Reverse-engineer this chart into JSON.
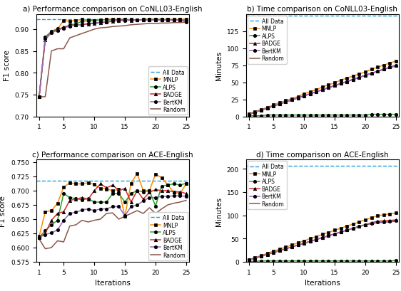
{
  "iterations": [
    1,
    2,
    3,
    4,
    5,
    6,
    7,
    8,
    9,
    10,
    11,
    12,
    13,
    14,
    15,
    16,
    17,
    18,
    19,
    20,
    21,
    22,
    23,
    24,
    25
  ],
  "conll_perf": {
    "all_data": 0.922,
    "MNLP": [
      0.745,
      0.88,
      0.893,
      0.9,
      0.92,
      0.918,
      0.92,
      0.922,
      0.921,
      0.92,
      0.921,
      0.922,
      0.923,
      0.923,
      0.922,
      0.922,
      0.921,
      0.922,
      0.923,
      0.923,
      0.922,
      0.923,
      0.922,
      0.923,
      0.923
    ],
    "ALPS": [
      0.745,
      0.882,
      0.895,
      0.901,
      0.902,
      0.91,
      0.912,
      0.918,
      0.919,
      0.92,
      0.921,
      0.922,
      0.921,
      0.922,
      0.922,
      0.921,
      0.921,
      0.922,
      0.922,
      0.923,
      0.922,
      0.922,
      0.921,
      0.922,
      0.916
    ],
    "BADGE": [
      0.745,
      0.875,
      0.893,
      0.898,
      0.905,
      0.908,
      0.91,
      0.91,
      0.912,
      0.913,
      0.915,
      0.916,
      0.918,
      0.92,
      0.921,
      0.92,
      0.921,
      0.921,
      0.921,
      0.921,
      0.921,
      0.921,
      0.921,
      0.921,
      0.921
    ],
    "BertKM": [
      0.745,
      0.878,
      0.892,
      0.897,
      0.903,
      0.907,
      0.909,
      0.911,
      0.913,
      0.914,
      0.916,
      0.917,
      0.919,
      0.919,
      0.92,
      0.921,
      0.921,
      0.921,
      0.921,
      0.921,
      0.921,
      0.921,
      0.921,
      0.921,
      0.921
    ],
    "Random": [
      0.745,
      0.745,
      0.85,
      0.855,
      0.855,
      0.88,
      0.885,
      0.89,
      0.895,
      0.9,
      0.903,
      0.904,
      0.906,
      0.907,
      0.908,
      0.91,
      0.911,
      0.912,
      0.913,
      0.913,
      0.914,
      0.914,
      0.915,
      0.915,
      0.916
    ]
  },
  "conll_time": {
    "all_data": 147,
    "MNLP": [
      4,
      7,
      10,
      13,
      17,
      20,
      23,
      26,
      29,
      33,
      36,
      39,
      43,
      46,
      49,
      53,
      56,
      59,
      62,
      65,
      69,
      72,
      75,
      78,
      81
    ],
    "ALPS": [
      1,
      1,
      1,
      2,
      2,
      2,
      2,
      2,
      2,
      2,
      2,
      2,
      2,
      2,
      2,
      2,
      2,
      2,
      2,
      2,
      3,
      3,
      3,
      3,
      3
    ],
    "BADGE": [
      3,
      6,
      9,
      12,
      15,
      18,
      21,
      24,
      27,
      30,
      33,
      36,
      39,
      42,
      45,
      48,
      51,
      54,
      57,
      60,
      63,
      66,
      69,
      72,
      75
    ],
    "BertKM": [
      3,
      6,
      9,
      12,
      15,
      18,
      21,
      24,
      27,
      30,
      33,
      36,
      39,
      42,
      45,
      48,
      51,
      54,
      57,
      60,
      63,
      66,
      69,
      72,
      74
    ],
    "Random": [
      3,
      6,
      9,
      12,
      15,
      18,
      21,
      24,
      27,
      30,
      33,
      36,
      39,
      42,
      45,
      48,
      51,
      54,
      57,
      60,
      63,
      66,
      69,
      71,
      74
    ]
  },
  "ace_perf": {
    "all_data": 0.718,
    "MNLP": [
      0.62,
      0.663,
      0.665,
      0.678,
      0.706,
      0.714,
      0.712,
      0.712,
      0.714,
      0.711,
      0.704,
      0.703,
      0.7,
      0.702,
      0.655,
      0.713,
      0.73,
      0.7,
      0.7,
      0.729,
      0.723,
      0.71,
      0.697,
      0.695,
      0.712
    ],
    "ALPS": [
      0.618,
      0.63,
      0.64,
      0.648,
      0.695,
      0.688,
      0.686,
      0.684,
      0.686,
      0.68,
      0.68,
      0.68,
      0.695,
      0.695,
      0.68,
      0.695,
      0.7,
      0.698,
      0.7,
      0.673,
      0.708,
      0.71,
      0.712,
      0.71,
      0.713
    ],
    "BADGE": [
      0.618,
      0.625,
      0.648,
      0.66,
      0.663,
      0.683,
      0.685,
      0.688,
      0.685,
      0.7,
      0.712,
      0.705,
      0.71,
      0.7,
      0.704,
      0.68,
      0.7,
      0.685,
      0.697,
      0.702,
      0.7,
      0.7,
      0.698,
      0.698,
      0.695
    ],
    "BertKM": [
      0.618,
      0.623,
      0.626,
      0.631,
      0.648,
      0.66,
      0.662,
      0.666,
      0.668,
      0.665,
      0.668,
      0.668,
      0.672,
      0.672,
      0.656,
      0.672,
      0.675,
      0.682,
      0.688,
      0.688,
      0.69,
      0.69,
      0.691,
      0.691,
      0.69
    ],
    "Random": [
      0.615,
      0.598,
      0.6,
      0.612,
      0.61,
      0.638,
      0.64,
      0.648,
      0.645,
      0.648,
      0.65,
      0.66,
      0.661,
      0.65,
      0.655,
      0.66,
      0.665,
      0.66,
      0.67,
      0.66,
      0.668,
      0.675,
      0.678,
      0.68,
      0.683
    ]
  },
  "ace_time": {
    "all_data": 206,
    "MNLP": [
      5,
      9,
      14,
      18,
      23,
      27,
      32,
      36,
      41,
      45,
      50,
      54,
      59,
      63,
      68,
      72,
      77,
      81,
      86,
      90,
      95,
      99,
      101,
      103,
      105
    ],
    "ALPS": [
      1,
      1,
      2,
      2,
      2,
      2,
      2,
      2,
      2,
      2,
      2,
      2,
      2,
      2,
      2,
      2,
      2,
      2,
      2,
      2,
      2,
      2,
      2,
      2,
      3
    ],
    "BADGE": [
      4,
      8,
      12,
      16,
      20,
      24,
      28,
      32,
      36,
      40,
      44,
      48,
      52,
      56,
      60,
      64,
      68,
      72,
      76,
      80,
      84,
      87,
      88,
      89,
      90
    ],
    "BertKM": [
      4,
      8,
      12,
      16,
      20,
      24,
      28,
      32,
      36,
      40,
      44,
      48,
      52,
      56,
      60,
      64,
      68,
      72,
      76,
      80,
      83,
      85,
      86,
      87,
      88
    ],
    "Random": [
      4,
      8,
      12,
      16,
      20,
      24,
      28,
      32,
      36,
      40,
      44,
      48,
      52,
      56,
      60,
      64,
      68,
      72,
      76,
      79,
      82,
      84,
      85,
      86,
      87
    ]
  },
  "colors": {
    "MNLP": "#ff8c00",
    "ALPS": "#2ca02c",
    "BADGE": "#d62728",
    "BertKM": "#9467bd",
    "Random": "#8c564b",
    "all_data": "#1f9fd4"
  }
}
